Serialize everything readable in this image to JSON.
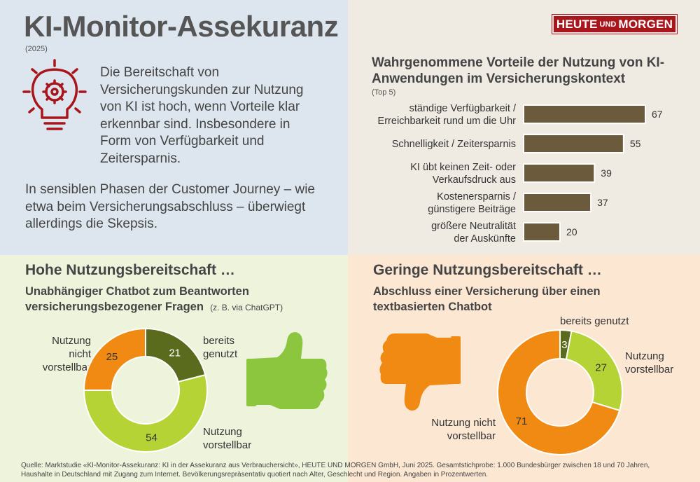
{
  "header": {
    "title": "KI-Monitor-Assekuranz",
    "year": "(2025)",
    "logo_part1": "HEUTE",
    "logo_part2": "UND",
    "logo_part3": "MORGEN"
  },
  "intro": {
    "text1": "Die Bereitschaft von Versicherungskunden zur Nutzung von KI ist hoch, wenn Vorteile klar erkennbar sind. Insbesondere in Form von Verfügbarkeit und Zeitersparnis.",
    "text2": "In sensiblen Phasen der Customer Journey – wie etwa beim Versicherungsabschluss – überwiegt allerdings die Skepsis."
  },
  "icons": {
    "idea": "lightbulb-gear-icon",
    "positive": "thumbs-up-icon",
    "negative": "thumbs-down-icon"
  },
  "colors": {
    "brand_red": "#a8161b",
    "bar_brown": "#6b5a3c",
    "dark_green": "#5a6b1e",
    "light_green": "#b5d334",
    "orange": "#f08a12"
  },
  "left_section": {
    "title": "Hohe Nutzungsbereitschaft …",
    "subtitle_line1": "Unabhängiger Chatbot zum Beantworten",
    "subtitle_line2": "versicherungsbezogener Fragen",
    "subtitle_note": "(z. B. via ChatGPT)"
  },
  "right_section": {
    "title": "Geringe Nutzungsbereitschaft …",
    "subtitle_line1": "Abschluss einer Versicherung über einen",
    "subtitle_line2": "textbasierten Chatbot"
  },
  "chart_data": [
    {
      "type": "bar",
      "orientation": "horizontal",
      "title": "Wahrgenommene Vorteile der Nutzung von KI-Anwendungen im Versicherungskontext",
      "subtitle": "(Top 5)",
      "categories": [
        [
          "ständige Verfügbarkeit /",
          "Erreichbarkeit rund um die Uhr"
        ],
        [
          "Schnelligkeit / Zeitersparnis"
        ],
        [
          "KI übt keinen Zeit- oder",
          "Verkaufsdruck aus"
        ],
        [
          "Kostenersparnis /",
          "günstigere Beiträge"
        ],
        [
          "größere Neutralität",
          "der Auskünfte"
        ]
      ],
      "values": [
        67,
        55,
        39,
        37,
        20
      ],
      "xlim": [
        0,
        67
      ],
      "color": "#6b5a3c"
    },
    {
      "type": "pie",
      "style": "donut",
      "segments": [
        {
          "label": "bereits genutzt",
          "label_lines": [
            "bereits",
            "genutzt"
          ],
          "value": 21,
          "color": "#5a6b1e"
        },
        {
          "label": "Nutzung vorstellbar",
          "label_lines": [
            "Nutzung",
            "vorstellbar"
          ],
          "value": 54,
          "color": "#b5d334"
        },
        {
          "label": "Nutzung nicht vorstellbar",
          "label_lines": [
            "Nutzung nicht",
            "vorstellbar"
          ],
          "value": 25,
          "color": "#f08a12"
        }
      ]
    },
    {
      "type": "pie",
      "style": "donut",
      "segments": [
        {
          "label": "bereits genutzt",
          "label_lines": [
            "bereits genutzt"
          ],
          "value": 3,
          "color": "#5a6b1e"
        },
        {
          "label": "Nutzung vorstellbar",
          "label_lines": [
            "Nutzung",
            "vorstellbar"
          ],
          "value": 27,
          "color": "#b5d334"
        },
        {
          "label": "Nutzung nicht vorstellbar",
          "label_lines": [
            "Nutzung nicht",
            "vorstellbar"
          ],
          "value": 71,
          "color": "#f08a12"
        }
      ]
    }
  ],
  "source": {
    "line1": "Quelle: Marktstudie «KI-Monitor-Assekuranz: KI in der Assekuranz aus Verbrauchersicht», HEUTE UND MORGEN GmbH, Juni 2025. Gesamtstichprobe: 1.000 Bundesbürger zwischen 18 und 70 Jahren,",
    "line2": "Haushalte in Deutschland mit Zugang zum Internet. Bevölkerungsrepräsentativ quotiert nach Alter, Geschlecht und Region. Angaben in Prozentwerten."
  }
}
